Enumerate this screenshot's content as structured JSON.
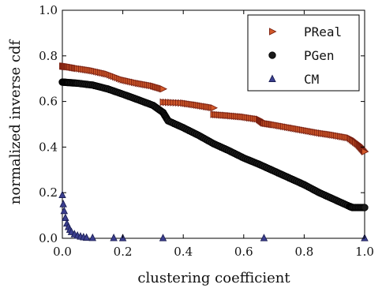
{
  "chart_data": {
    "type": "scatter",
    "title": "",
    "xlabel": "clustering coefficient",
    "ylabel": "normalized inverse cdf",
    "xlim": [
      0.0,
      1.0
    ],
    "ylim": [
      0.0,
      1.0
    ],
    "x_ticks": [
      "0.0",
      "0.2",
      "0.4",
      "0.6",
      "0.8",
      "1.0"
    ],
    "y_ticks": [
      "0.0",
      "0.2",
      "0.4",
      "0.6",
      "0.8",
      "1.0"
    ],
    "grid": false,
    "legend_position": "top-right",
    "legend": [
      {
        "name": "PReal",
        "marker": "triangle-right",
        "fill": "#d35a2a",
        "stroke": "#7a1f10"
      },
      {
        "name": "PGen",
        "marker": "circle",
        "fill": "#1b1b1b",
        "stroke": "#000000"
      },
      {
        "name": "CM",
        "marker": "triangle-up",
        "fill": "#3b3f8f",
        "stroke": "#1c1f55"
      }
    ],
    "series": [
      {
        "name": "PReal",
        "x": [
          0.0,
          0.02,
          0.05,
          0.1,
          0.15,
          0.2,
          0.25,
          0.3,
          0.333,
          0.333,
          0.4,
          0.45,
          0.5,
          0.5,
          0.55,
          0.6,
          0.65,
          0.667,
          0.7,
          0.75,
          0.8,
          0.85,
          0.9,
          0.95,
          0.98,
          1.0
        ],
        "y": [
          0.755,
          0.752,
          0.745,
          0.735,
          0.72,
          0.695,
          0.68,
          0.668,
          0.655,
          0.597,
          0.593,
          0.583,
          0.572,
          0.543,
          0.538,
          0.532,
          0.522,
          0.505,
          0.498,
          0.486,
          0.474,
          0.462,
          0.452,
          0.44,
          0.41,
          0.38
        ]
      },
      {
        "name": "PGen",
        "x": [
          0.0,
          0.02,
          0.05,
          0.1,
          0.15,
          0.2,
          0.25,
          0.3,
          0.333,
          0.35,
          0.4,
          0.45,
          0.5,
          0.55,
          0.6,
          0.65,
          0.7,
          0.75,
          0.8,
          0.85,
          0.9,
          0.95,
          0.96,
          1.0
        ],
        "y": [
          0.685,
          0.683,
          0.68,
          0.672,
          0.655,
          0.632,
          0.608,
          0.583,
          0.552,
          0.515,
          0.485,
          0.452,
          0.415,
          0.385,
          0.352,
          0.325,
          0.295,
          0.265,
          0.235,
          0.2,
          0.17,
          0.14,
          0.135,
          0.135
        ]
      },
      {
        "name": "CM",
        "x": [
          0.0,
          0.003,
          0.006,
          0.01,
          0.015,
          0.02,
          0.025,
          0.03,
          0.04,
          0.05,
          0.06,
          0.07,
          0.08,
          0.1,
          0.17,
          0.2,
          0.333,
          0.667,
          1.0
        ],
        "y": [
          0.19,
          0.15,
          0.12,
          0.09,
          0.065,
          0.05,
          0.038,
          0.028,
          0.018,
          0.012,
          0.008,
          0.005,
          0.003,
          0.002,
          0.0015,
          0.001,
          0.001,
          0.001,
          0.001
        ]
      }
    ]
  }
}
